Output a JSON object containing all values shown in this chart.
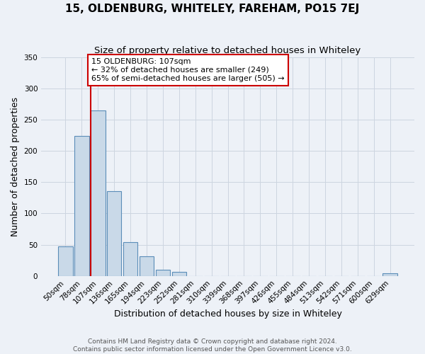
{
  "title": "15, OLDENBURG, WHITELEY, FAREHAM, PO15 7EJ",
  "subtitle": "Size of property relative to detached houses in Whiteley",
  "xlabel": "Distribution of detached houses by size in Whiteley",
  "ylabel": "Number of detached properties",
  "footer_line1": "Contains HM Land Registry data © Crown copyright and database right 2024.",
  "footer_line2": "Contains public sector information licensed under the Open Government Licence v3.0.",
  "bin_labels": [
    "50sqm",
    "78sqm",
    "107sqm",
    "136sqm",
    "165sqm",
    "194sqm",
    "223sqm",
    "252sqm",
    "281sqm",
    "310sqm",
    "339sqm",
    "368sqm",
    "397sqm",
    "426sqm",
    "455sqm",
    "484sqm",
    "513sqm",
    "542sqm",
    "571sqm",
    "600sqm",
    "629sqm"
  ],
  "bar_values": [
    47,
    224,
    265,
    136,
    54,
    31,
    10,
    6,
    0,
    0,
    0,
    0,
    0,
    0,
    0,
    0,
    0,
    0,
    0,
    0,
    4
  ],
  "bar_color": "#c9d9e8",
  "bar_edgecolor": "#5b8db8",
  "annotation_text": "15 OLDENBURG: 107sqm\n← 32% of detached houses are smaller (249)\n65% of semi-detached houses are larger (505) →",
  "annotation_box_facecolor": "#ffffff",
  "annotation_box_edgecolor": "#cc0000",
  "vline_color": "#cc0000",
  "vline_x_index": 2,
  "ylim": [
    0,
    350
  ],
  "yticks": [
    0,
    50,
    100,
    150,
    200,
    250,
    300,
    350
  ],
  "grid_color": "#cdd5e0",
  "bg_color": "#edf1f7",
  "title_fontsize": 11,
  "subtitle_fontsize": 9.5,
  "axis_label_fontsize": 9,
  "tick_fontsize": 7.5,
  "annotation_fontsize": 8,
  "footer_fontsize": 6.5
}
